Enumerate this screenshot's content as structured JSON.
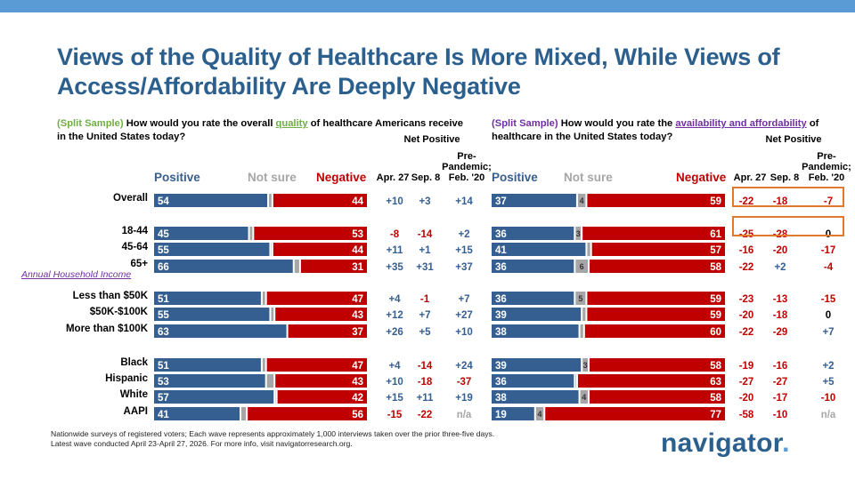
{
  "title": "Views of the Quality of Healthcare Is More Mixed, While Views of Access/Affordability Are Deeply Negative",
  "left_question": {
    "tag": "(Split Sample)",
    "pre": " How would you rate the overall ",
    "keyword": "quality",
    "post": " of healthcare Americans receive in the United States today?"
  },
  "right_question": {
    "tag": "(Split Sample)",
    "pre": " How would you rate the ",
    "keyword": "availability and affordability",
    "post": " of healthcare in the United States today?"
  },
  "legend": {
    "positive": "Positive",
    "not_sure": "Not sure",
    "negative": "Negative"
  },
  "headers": {
    "net_positive": "Net Positive",
    "apr27": "Apr. 27",
    "sep8": "Sep. 8",
    "pre_pandemic": "Pre-Pandemic; Feb. '20"
  },
  "subhead": "Annual Household Income",
  "colors": {
    "positive": "#365f91",
    "not_sure": "#a6a6a6",
    "negative": "#c00000",
    "net_neg": "#c00000",
    "net_pos": "#365f91",
    "na": "#a6a6a6"
  },
  "chart_data": [
    {
      "type": "bar",
      "title": "Quality of healthcare",
      "categories": [
        "Overall",
        "18-44",
        "45-64",
        "65+",
        "Less than $50K",
        "$50K-$100K",
        "More than $100K",
        "Black",
        "Hispanic",
        "White",
        "AAPI"
      ],
      "series": [
        {
          "name": "Positive",
          "values": [
            54,
            45,
            55,
            66,
            51,
            55,
            63,
            51,
            53,
            57,
            41
          ]
        },
        {
          "name": "Not sure",
          "values": [
            2,
            2,
            1,
            3,
            2,
            2,
            0,
            2,
            4,
            1,
            3
          ]
        },
        {
          "name": "Negative",
          "values": [
            44,
            53,
            44,
            31,
            47,
            43,
            37,
            47,
            43,
            42,
            56
          ]
        }
      ],
      "net_positive": {
        "apr27": [
          "+10",
          "-8",
          "+11",
          "+35",
          "+4",
          "+12",
          "+26",
          "+4",
          "+10",
          "+15",
          "-15"
        ],
        "sep8": [
          "+3",
          "-14",
          "+1",
          "+31",
          "-1",
          "+7",
          "+5",
          "-14",
          "-18",
          "+11",
          "-22"
        ],
        "pre_pandemic": [
          "+14",
          "+2",
          "+15",
          "+37",
          "+7",
          "+27",
          "+10",
          "+24",
          "-37",
          "+19",
          "n/a"
        ]
      }
    },
    {
      "type": "bar",
      "title": "Availability and affordability of healthcare",
      "categories": [
        "Overall",
        "18-44",
        "45-64",
        "65+",
        "Less than $50K",
        "$50K-$100K",
        "More than $100K",
        "Black",
        "Hispanic",
        "White",
        "AAPI"
      ],
      "series": [
        {
          "name": "Positive",
          "values": [
            37,
            36,
            41,
            36,
            36,
            39,
            38,
            39,
            36,
            38,
            19
          ]
        },
        {
          "name": "Not sure",
          "values": [
            4,
            3,
            2,
            6,
            5,
            2,
            2,
            3,
            1,
            4,
            4
          ]
        },
        {
          "name": "Negative",
          "values": [
            59,
            61,
            57,
            58,
            59,
            59,
            60,
            58,
            63,
            58,
            77
          ]
        }
      ],
      "shown_not_sure": [
        true,
        true,
        false,
        true,
        true,
        false,
        false,
        true,
        false,
        true,
        true
      ],
      "net_positive": {
        "apr27": [
          "-22",
          "-25",
          "-16",
          "-22",
          "-23",
          "-20",
          "-22",
          "-19",
          "-27",
          "-20",
          "-58"
        ],
        "sep8": [
          "-18",
          "-28",
          "-20",
          "+2",
          "-13",
          "-18",
          "-29",
          "-16",
          "-27",
          "-17",
          "-10"
        ],
        "pre_pandemic": [
          "-7",
          "0",
          "-17",
          "-4",
          "-15",
          "0",
          "+7",
          "+2",
          "+5",
          "-10",
          "n/a"
        ]
      }
    }
  ],
  "footnote": [
    "Nationwide surveys of registered voters; Each wave represents approximately 1,000 interviews taken over the prior three-five days.",
    "Latest wave conducted April 23-April 27, 2026. For more info, visit navigatorresearch.org."
  ],
  "logo": {
    "text": "navigator",
    "dot": "."
  }
}
